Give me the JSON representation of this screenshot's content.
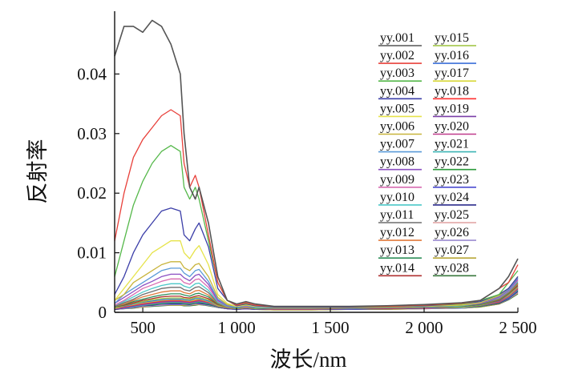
{
  "chart_data": {
    "type": "line",
    "xlabel": "波长/nm",
    "ylabel": "反射率",
    "xlim": [
      350,
      2500
    ],
    "ylim": [
      0,
      0.05
    ],
    "xticks": [
      500,
      1000,
      1500,
      2000,
      2500
    ],
    "xtick_labels": [
      "500",
      "1 000",
      "1 500",
      "2 000",
      "2 500"
    ],
    "yticks": [
      0,
      0.01,
      0.02,
      0.03,
      0.04
    ],
    "ytick_labels": [
      "0",
      "0.01",
      "0.02",
      "0.03",
      "0.04"
    ],
    "legend_position": "top-right",
    "x": [
      350,
      400,
      450,
      500,
      550,
      600,
      650,
      700,
      720,
      750,
      780,
      800,
      850,
      900,
      950,
      1000,
      1050,
      1100,
      1200,
      1400,
      1600,
      1800,
      2000,
      2200,
      2300,
      2400,
      2450,
      2500
    ],
    "series": [
      {
        "name": "yy.001",
        "color": "#555555",
        "values": [
          0.043,
          0.048,
          0.048,
          0.047,
          0.049,
          0.048,
          0.045,
          0.04,
          0.03,
          0.021,
          0.019,
          0.021,
          0.015,
          0.006,
          0.002,
          0.0014,
          0.0018,
          0.0014,
          0.001,
          0.001,
          0.001,
          0.0011,
          0.0013,
          0.0016,
          0.002,
          0.004,
          0.006,
          0.009
        ]
      },
      {
        "name": "yy.002",
        "color": "#e8403a",
        "values": [
          0.012,
          0.02,
          0.026,
          0.029,
          0.031,
          0.033,
          0.034,
          0.033,
          0.025,
          0.021,
          0.023,
          0.021,
          0.013,
          0.005,
          0.002,
          0.0012,
          0.0016,
          0.0012,
          0.001,
          0.001,
          0.001,
          0.001,
          0.0012,
          0.0015,
          0.002,
          0.004,
          0.005,
          0.008
        ]
      },
      {
        "name": "yy.003",
        "color": "#55b84a",
        "values": [
          0.006,
          0.012,
          0.018,
          0.022,
          0.025,
          0.027,
          0.028,
          0.027,
          0.021,
          0.019,
          0.021,
          0.019,
          0.012,
          0.005,
          0.002,
          0.0012,
          0.0015,
          0.0012,
          0.001,
          0.001,
          0.001,
          0.001,
          0.0012,
          0.0014,
          0.002,
          0.003,
          0.005,
          0.007
        ]
      },
      {
        "name": "yy.004",
        "color": "#3b3ea8",
        "values": [
          0.003,
          0.006,
          0.01,
          0.013,
          0.015,
          0.017,
          0.0175,
          0.017,
          0.013,
          0.012,
          0.014,
          0.015,
          0.011,
          0.004,
          0.002,
          0.0011,
          0.0014,
          0.0011,
          0.0009,
          0.0009,
          0.0009,
          0.001,
          0.0011,
          0.0014,
          0.0018,
          0.003,
          0.004,
          0.006
        ]
      },
      {
        "name": "yy.005",
        "color": "#e6e34a",
        "values": [
          0.002,
          0.004,
          0.006,
          0.008,
          0.01,
          0.011,
          0.012,
          0.012,
          0.01,
          0.009,
          0.0105,
          0.0112,
          0.008,
          0.003,
          0.0015,
          0.001,
          0.0013,
          0.001,
          0.0009,
          0.0009,
          0.0009,
          0.001,
          0.0011,
          0.0013,
          0.0017,
          0.003,
          0.004,
          0.006
        ]
      },
      {
        "name": "yy.006",
        "color": "#c8b43c",
        "values": [
          0.002,
          0.003,
          0.005,
          0.006,
          0.007,
          0.008,
          0.0085,
          0.0085,
          0.0075,
          0.007,
          0.008,
          0.0082,
          0.006,
          0.0025,
          0.0013,
          0.001,
          0.0012,
          0.001,
          0.0008,
          0.0008,
          0.0008,
          0.0009,
          0.001,
          0.0012,
          0.0016,
          0.0028,
          0.004,
          0.006
        ]
      },
      {
        "name": "yy.007",
        "color": "#5a9ad8",
        "values": [
          0.0015,
          0.003,
          0.004,
          0.005,
          0.006,
          0.007,
          0.0074,
          0.0074,
          0.0066,
          0.006,
          0.007,
          0.0072,
          0.0052,
          0.0022,
          0.0012,
          0.0009,
          0.0011,
          0.0009,
          0.0008,
          0.0008,
          0.0008,
          0.0009,
          0.001,
          0.0012,
          0.0016,
          0.0027,
          0.0038,
          0.0058
        ]
      },
      {
        "name": "yy.008",
        "color": "#8b4fc2",
        "values": [
          0.0015,
          0.0025,
          0.0035,
          0.0045,
          0.0052,
          0.006,
          0.0064,
          0.0064,
          0.0058,
          0.0053,
          0.0062,
          0.0064,
          0.0047,
          0.002,
          0.0011,
          0.0009,
          0.0011,
          0.0009,
          0.0008,
          0.0008,
          0.0008,
          0.0009,
          0.001,
          0.0012,
          0.0015,
          0.0026,
          0.0037,
          0.0056
        ]
      },
      {
        "name": "yy.009",
        "color": "#d86ab0",
        "values": [
          0.0012,
          0.002,
          0.003,
          0.004,
          0.0046,
          0.0052,
          0.0056,
          0.0056,
          0.005,
          0.0047,
          0.0055,
          0.0056,
          0.0042,
          0.0019,
          0.0011,
          0.0009,
          0.001,
          0.0009,
          0.0008,
          0.0008,
          0.0008,
          0.0009,
          0.001,
          0.0012,
          0.0015,
          0.0025,
          0.0036,
          0.0054
        ]
      },
      {
        "name": "yy.010",
        "color": "#4bc8c8",
        "values": [
          0.0012,
          0.0018,
          0.0026,
          0.0034,
          0.004,
          0.0045,
          0.0048,
          0.0048,
          0.0044,
          0.0041,
          0.0048,
          0.0049,
          0.0037,
          0.0017,
          0.001,
          0.0008,
          0.001,
          0.0008,
          0.0007,
          0.0007,
          0.0008,
          0.0008,
          0.0009,
          0.0011,
          0.0015,
          0.0024,
          0.0035,
          0.0052
        ]
      },
      {
        "name": "yy.011",
        "color": "#6e6e6e",
        "values": [
          0.001,
          0.0016,
          0.0022,
          0.003,
          0.0035,
          0.004,
          0.0042,
          0.0042,
          0.0038,
          0.0036,
          0.0042,
          0.0043,
          0.0033,
          0.0016,
          0.001,
          0.0008,
          0.001,
          0.0008,
          0.0007,
          0.0007,
          0.0007,
          0.0008,
          0.0009,
          0.0011,
          0.0014,
          0.0023,
          0.0034,
          0.005
        ]
      },
      {
        "name": "yy.012",
        "color": "#e07a3c",
        "values": [
          0.001,
          0.0014,
          0.002,
          0.0026,
          0.003,
          0.0034,
          0.0036,
          0.0036,
          0.0033,
          0.0031,
          0.0036,
          0.0037,
          0.0029,
          0.0015,
          0.0009,
          0.0008,
          0.0009,
          0.0008,
          0.0007,
          0.0007,
          0.0007,
          0.0008,
          0.0009,
          0.0011,
          0.0014,
          0.0022,
          0.0033,
          0.0048
        ]
      },
      {
        "name": "yy.013",
        "color": "#2f8f5a",
        "values": [
          0.0009,
          0.0013,
          0.0018,
          0.0022,
          0.0026,
          0.0029,
          0.0031,
          0.0031,
          0.0029,
          0.0027,
          0.0031,
          0.0032,
          0.0026,
          0.0014,
          0.0009,
          0.0007,
          0.0009,
          0.0007,
          0.0007,
          0.0007,
          0.0007,
          0.0008,
          0.0009,
          0.001,
          0.0013,
          0.0021,
          0.0032,
          0.0047
        ]
      },
      {
        "name": "yy.014",
        "color": "#b03030",
        "values": [
          0.0009,
          0.0012,
          0.0016,
          0.002,
          0.0023,
          0.0026,
          0.0027,
          0.0027,
          0.0025,
          0.0024,
          0.0027,
          0.0028,
          0.0023,
          0.0013,
          0.0009,
          0.0007,
          0.0009,
          0.0007,
          0.0006,
          0.0006,
          0.0007,
          0.0007,
          0.0008,
          0.001,
          0.0013,
          0.002,
          0.0031,
          0.0045
        ]
      },
      {
        "name": "yy.015",
        "color": "#9cc23c",
        "values": [
          0.0008,
          0.0011,
          0.0015,
          0.0018,
          0.0021,
          0.0023,
          0.0024,
          0.0024,
          0.0023,
          0.0022,
          0.0025,
          0.0025,
          0.0021,
          0.0012,
          0.0008,
          0.0007,
          0.0008,
          0.0007,
          0.0006,
          0.0006,
          0.0007,
          0.0007,
          0.0008,
          0.001,
          0.0012,
          0.002,
          0.003,
          0.0044
        ]
      },
      {
        "name": "yy.016",
        "color": "#3a6fd8",
        "values": [
          0.0008,
          0.001,
          0.0014,
          0.0017,
          0.0019,
          0.0021,
          0.0022,
          0.0022,
          0.0021,
          0.002,
          0.0023,
          0.0023,
          0.0019,
          0.0012,
          0.0008,
          0.0007,
          0.0008,
          0.0007,
          0.0006,
          0.0006,
          0.0006,
          0.0007,
          0.0008,
          0.001,
          0.0012,
          0.0019,
          0.0029,
          0.0043
        ]
      },
      {
        "name": "yy.017",
        "color": "#d8d83a",
        "values": [
          0.0007,
          0.001,
          0.0013,
          0.0016,
          0.0018,
          0.002,
          0.0021,
          0.0021,
          0.002,
          0.0019,
          0.0021,
          0.0022,
          0.0018,
          0.0011,
          0.0008,
          0.0006,
          0.0008,
          0.0006,
          0.0006,
          0.0006,
          0.0006,
          0.0007,
          0.0008,
          0.0009,
          0.0012,
          0.0019,
          0.0028,
          0.0042
        ]
      },
      {
        "name": "yy.018",
        "color": "#ff3030",
        "values": [
          0.0007,
          0.0009,
          0.0012,
          0.0015,
          0.0017,
          0.0019,
          0.002,
          0.002,
          0.0019,
          0.0018,
          0.002,
          0.0021,
          0.0017,
          0.0011,
          0.0008,
          0.0006,
          0.0008,
          0.0006,
          0.0006,
          0.0006,
          0.0006,
          0.0007,
          0.0008,
          0.0009,
          0.0012,
          0.0018,
          0.0027,
          0.0041
        ]
      },
      {
        "name": "yy.019",
        "color": "#7a3fa8",
        "values": [
          0.0007,
          0.0009,
          0.0011,
          0.0014,
          0.0016,
          0.0018,
          0.0019,
          0.0019,
          0.0018,
          0.0017,
          0.0019,
          0.002,
          0.0016,
          0.001,
          0.0007,
          0.0006,
          0.0007,
          0.0006,
          0.0006,
          0.0006,
          0.0006,
          0.0007,
          0.0007,
          0.0009,
          0.0011,
          0.0018,
          0.0026,
          0.004
        ]
      },
      {
        "name": "yy.020",
        "color": "#c03c8c",
        "values": [
          0.0006,
          0.0008,
          0.0011,
          0.0013,
          0.0015,
          0.0017,
          0.0018,
          0.0018,
          0.0017,
          0.0016,
          0.0018,
          0.0019,
          0.0016,
          0.001,
          0.0007,
          0.0006,
          0.0007,
          0.0006,
          0.0005,
          0.0005,
          0.0006,
          0.0006,
          0.0007,
          0.0009,
          0.0011,
          0.0017,
          0.0026,
          0.0039
        ]
      },
      {
        "name": "yy.021",
        "color": "#3cb4b4",
        "values": [
          0.0006,
          0.0008,
          0.001,
          0.0012,
          0.0014,
          0.0016,
          0.0017,
          0.0017,
          0.0016,
          0.0015,
          0.0017,
          0.0018,
          0.0015,
          0.001,
          0.0007,
          0.0006,
          0.0007,
          0.0006,
          0.0005,
          0.0005,
          0.0006,
          0.0006,
          0.0007,
          0.0008,
          0.0011,
          0.0017,
          0.0025,
          0.0038
        ]
      },
      {
        "name": "yy.022",
        "color": "#2a9a3a",
        "values": [
          0.0006,
          0.0008,
          0.001,
          0.0012,
          0.0013,
          0.0015,
          0.0016,
          0.0016,
          0.0015,
          0.0014,
          0.0016,
          0.0017,
          0.0014,
          0.0009,
          0.0007,
          0.0006,
          0.0007,
          0.0006,
          0.0005,
          0.0005,
          0.0006,
          0.0006,
          0.0007,
          0.0008,
          0.001,
          0.0016,
          0.0025,
          0.0037
        ]
      },
      {
        "name": "yy.023",
        "color": "#4a4ad0",
        "values": [
          0.0006,
          0.0007,
          0.0009,
          0.0011,
          0.0013,
          0.0014,
          0.0015,
          0.0015,
          0.0014,
          0.0014,
          0.0015,
          0.0016,
          0.0014,
          0.0009,
          0.0007,
          0.0005,
          0.0007,
          0.0005,
          0.0005,
          0.0005,
          0.0005,
          0.0006,
          0.0007,
          0.0008,
          0.001,
          0.0016,
          0.0024,
          0.0036
        ]
      },
      {
        "name": "yy.024",
        "color": "#2c2c8c",
        "values": [
          0.0005,
          0.0007,
          0.0009,
          0.0011,
          0.0012,
          0.0014,
          0.0014,
          0.0014,
          0.0014,
          0.0013,
          0.0015,
          0.0015,
          0.0013,
          0.0009,
          0.0006,
          0.0005,
          0.0006,
          0.0005,
          0.0005,
          0.0005,
          0.0005,
          0.0006,
          0.0007,
          0.0008,
          0.001,
          0.0015,
          0.0023,
          0.0035
        ]
      },
      {
        "name": "yy.025",
        "color": "#e0a0a0",
        "values": [
          0.0005,
          0.0007,
          0.0008,
          0.001,
          0.0012,
          0.0013,
          0.0014,
          0.0014,
          0.0013,
          0.0013,
          0.0014,
          0.0015,
          0.0013,
          0.0009,
          0.0006,
          0.0005,
          0.0006,
          0.0005,
          0.0005,
          0.0005,
          0.0005,
          0.0006,
          0.0006,
          0.0008,
          0.001,
          0.0015,
          0.0023,
          0.0034
        ]
      },
      {
        "name": "yy.026",
        "color": "#9c8cd0",
        "values": [
          0.0005,
          0.0006,
          0.0008,
          0.001,
          0.0011,
          0.0012,
          0.0013,
          0.0013,
          0.0013,
          0.0012,
          0.0014,
          0.0014,
          0.0012,
          0.0008,
          0.0006,
          0.0005,
          0.0006,
          0.0005,
          0.0005,
          0.0005,
          0.0005,
          0.0006,
          0.0006,
          0.0007,
          0.001,
          0.0015,
          0.0022,
          0.0033
        ]
      },
      {
        "name": "yy.027",
        "color": "#b8a838",
        "values": [
          0.0005,
          0.0006,
          0.0008,
          0.0009,
          0.0011,
          0.0012,
          0.0012,
          0.0012,
          0.0012,
          0.0012,
          0.0013,
          0.0013,
          0.0012,
          0.0008,
          0.0006,
          0.0005,
          0.0006,
          0.0005,
          0.0004,
          0.0004,
          0.0005,
          0.0005,
          0.0006,
          0.0007,
          0.0009,
          0.0014,
          0.0022,
          0.0032
        ]
      },
      {
        "name": "yy.028",
        "color": "#38783c",
        "values": [
          0.0005,
          0.0006,
          0.0007,
          0.0009,
          0.001,
          0.0011,
          0.0012,
          0.0012,
          0.0011,
          0.0011,
          0.0012,
          0.0013,
          0.0011,
          0.0008,
          0.0006,
          0.0005,
          0.0006,
          0.0005,
          0.0004,
          0.0004,
          0.0005,
          0.0005,
          0.0006,
          0.0007,
          0.0009,
          0.0014,
          0.0021,
          0.0031
        ]
      }
    ]
  }
}
